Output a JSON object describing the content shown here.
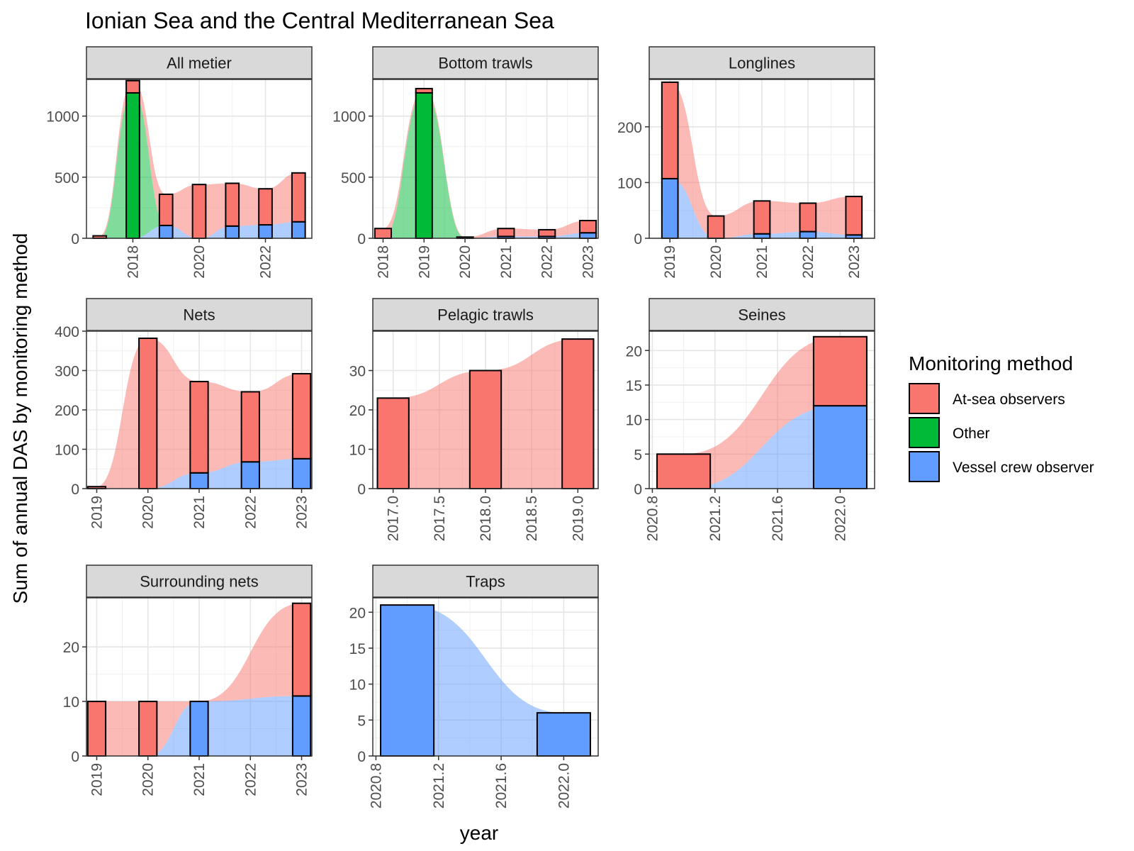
{
  "title": "Ionian Sea and the Central Mediterranean Sea",
  "xlabel": "year",
  "ylabel": "Sum of annual DAS by monitoring method",
  "legend": {
    "title": "Monitoring method",
    "placement": "right",
    "items": [
      {
        "key": "atsea",
        "label": "At-sea observers",
        "color": "#F8766D"
      },
      {
        "key": "other",
        "label": "Other",
        "color": "#00BA38"
      },
      {
        "key": "vessel",
        "label": "Vessel crew observer",
        "color": "#619CFF"
      }
    ]
  },
  "chart_data": [
    {
      "type": "bar",
      "facet": "All metier",
      "xlim": [
        2016.6,
        2023.4
      ],
      "ylim": [
        0,
        1300
      ],
      "xticks": [
        2018,
        2020,
        2022
      ],
      "xtick_labels": [
        "2018",
        "2020",
        "2022"
      ],
      "yticks": [
        0,
        500,
        1000
      ],
      "ytick_labels": [
        "0",
        "500",
        "1000"
      ],
      "bar_width": 0.4,
      "x": [
        2017,
        2018,
        2019,
        2020,
        2021,
        2022,
        2023
      ],
      "series": [
        {
          "key": "vessel",
          "values": [
            0,
            0,
            105,
            0,
            100,
            110,
            135
          ]
        },
        {
          "key": "other",
          "values": [
            0,
            1190,
            0,
            0,
            0,
            0,
            0
          ]
        },
        {
          "key": "atsea",
          "values": [
            20,
            100,
            255,
            440,
            350,
            295,
            400
          ]
        }
      ]
    },
    {
      "type": "bar",
      "facet": "Bottom trawls",
      "xlim": [
        2017.75,
        2023.25
      ],
      "ylim": [
        0,
        1300
      ],
      "xticks": [
        2018,
        2019,
        2020,
        2021,
        2022,
        2023
      ],
      "xtick_labels": [
        "2018",
        "2019",
        "2020",
        "2021",
        "2022",
        "2023"
      ],
      "yticks": [
        0,
        500,
        1000
      ],
      "ytick_labels": [
        "0",
        "500",
        "1000"
      ],
      "bar_width": 0.4,
      "x": [
        2018,
        2019,
        2020,
        2021,
        2022,
        2023
      ],
      "series": [
        {
          "key": "vessel",
          "values": [
            0,
            0,
            0,
            15,
            15,
            45
          ]
        },
        {
          "key": "other",
          "values": [
            0,
            1190,
            0,
            0,
            0,
            0
          ]
        },
        {
          "key": "atsea",
          "values": [
            80,
            35,
            10,
            65,
            55,
            100
          ]
        }
      ]
    },
    {
      "type": "bar",
      "facet": "Longlines",
      "xlim": [
        2018.55,
        2023.45
      ],
      "ylim": [
        0,
        285
      ],
      "xticks": [
        2019,
        2020,
        2021,
        2022,
        2023
      ],
      "xtick_labels": [
        "2019",
        "2020",
        "2021",
        "2022",
        "2023"
      ],
      "yticks": [
        0,
        100,
        200
      ],
      "ytick_labels": [
        "0",
        "100",
        "200"
      ],
      "bar_width": 0.35,
      "x": [
        2019,
        2020,
        2021,
        2022,
        2023
      ],
      "series": [
        {
          "key": "vessel",
          "values": [
            107,
            0,
            8,
            12,
            6
          ]
        },
        {
          "key": "atsea",
          "values": [
            173,
            40,
            59,
            51,
            69
          ]
        }
      ]
    },
    {
      "type": "bar",
      "facet": "Nets",
      "xlim": [
        2018.8,
        2023.2
      ],
      "ylim": [
        0,
        400
      ],
      "xticks": [
        2019,
        2020,
        2021,
        2022,
        2023
      ],
      "xtick_labels": [
        "2019",
        "2020",
        "2021",
        "2022",
        "2023"
      ],
      "yticks": [
        0,
        100,
        200,
        300,
        400
      ],
      "ytick_labels": [
        "0",
        "100",
        "200",
        "300",
        "400"
      ],
      "bar_width": 0.35,
      "x": [
        2019,
        2020,
        2021,
        2022,
        2023
      ],
      "series": [
        {
          "key": "vessel",
          "values": [
            0,
            0,
            40,
            68,
            76
          ]
        },
        {
          "key": "atsea",
          "values": [
            5,
            382,
            232,
            178,
            216
          ]
        }
      ]
    },
    {
      "type": "bar",
      "facet": "Pelagic trawls",
      "xlim": [
        2016.78,
        2019.22
      ],
      "ylim": [
        0,
        40
      ],
      "xticks": [
        2017.0,
        2017.5,
        2018.0,
        2018.5,
        2019.0
      ],
      "xtick_labels": [
        "2017.0",
        "2017.5",
        "2018.0",
        "2018.5",
        "2019.0"
      ],
      "yticks": [
        0,
        10,
        20,
        30
      ],
      "ytick_labels": [
        "0",
        "10",
        "20",
        "30"
      ],
      "bar_width": 0.34,
      "x": [
        2017,
        2018,
        2019
      ],
      "series": [
        {
          "key": "atsea",
          "values": [
            23,
            30,
            38
          ]
        }
      ]
    },
    {
      "type": "bar",
      "facet": "Seines",
      "xlim": [
        2020.78,
        2022.22
      ],
      "ylim": [
        0,
        22.8
      ],
      "xticks": [
        2020.8,
        2021.2,
        2021.6,
        2022.0
      ],
      "xtick_labels": [
        "2020.8",
        "2021.2",
        "2021.6",
        "2022.0"
      ],
      "yticks": [
        0,
        5,
        10,
        15,
        20
      ],
      "ytick_labels": [
        "0",
        "5",
        "10",
        "15",
        "20"
      ],
      "bar_width": 0.34,
      "x": [
        2021,
        2022
      ],
      "series": [
        {
          "key": "vessel",
          "values": [
            0,
            12
          ]
        },
        {
          "key": "atsea",
          "values": [
            5,
            10
          ]
        }
      ]
    },
    {
      "type": "bar",
      "facet": "Surrounding nets",
      "xlim": [
        2018.8,
        2023.2
      ],
      "ylim": [
        0,
        29
      ],
      "xticks": [
        2019,
        2020,
        2021,
        2022,
        2023
      ],
      "xtick_labels": [
        "2019",
        "2020",
        "2021",
        "2022",
        "2023"
      ],
      "yticks": [
        0,
        10,
        20
      ],
      "ytick_labels": [
        "0",
        "10",
        "20"
      ],
      "bar_width": 0.35,
      "x": [
        2019,
        2020,
        2021,
        2023
      ],
      "series": [
        {
          "key": "vessel",
          "values": [
            0,
            0,
            10,
            11
          ]
        },
        {
          "key": "atsea",
          "values": [
            10,
            10,
            0,
            17
          ]
        }
      ]
    },
    {
      "type": "bar",
      "facet": "Traps",
      "xlim": [
        2020.78,
        2022.22
      ],
      "ylim": [
        0,
        22
      ],
      "xticks": [
        2020.8,
        2021.2,
        2021.6,
        2022.0
      ],
      "xtick_labels": [
        "2020.8",
        "2021.2",
        "2021.6",
        "2022.0"
      ],
      "yticks": [
        0,
        5,
        10,
        15,
        20
      ],
      "ytick_labels": [
        "0",
        "5",
        "10",
        "15",
        "20"
      ],
      "bar_width": 0.34,
      "x": [
        2021,
        2022
      ],
      "series": [
        {
          "key": "vessel",
          "values": [
            21,
            6
          ]
        }
      ]
    }
  ]
}
